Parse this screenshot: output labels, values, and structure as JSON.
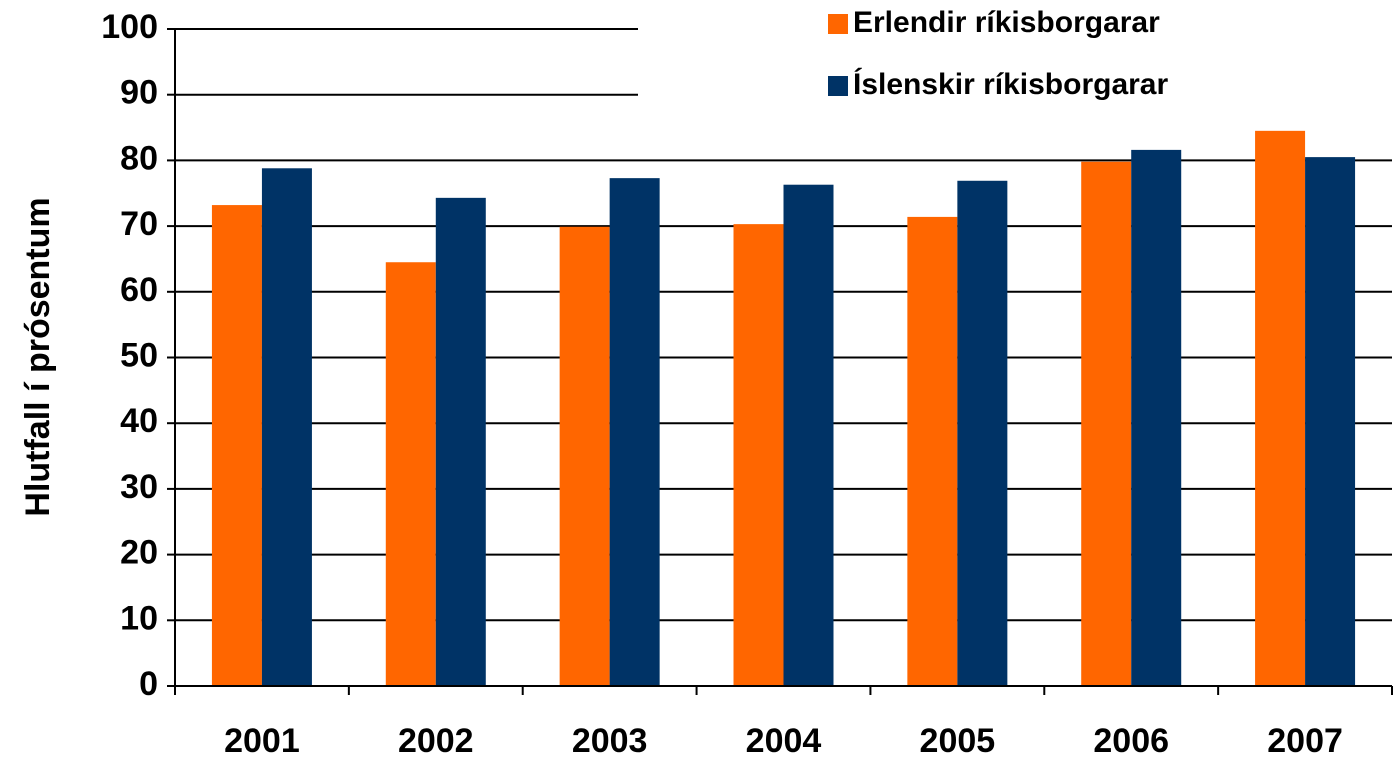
{
  "chart_data": {
    "type": "bar",
    "y_label": "Hlutfall í prósentum",
    "categories": [
      "2001",
      "2002",
      "2003",
      "2004",
      "2005",
      "2006",
      "2007"
    ],
    "series": [
      {
        "name": "Erlendir ríkisborgarar",
        "color": "#ff6600",
        "values": [
          73.2,
          64.5,
          69.9,
          70.3,
          71.4,
          79.8,
          84.5
        ]
      },
      {
        "name": "Íslenskir ríkisborgarar",
        "color": "#003366",
        "values": [
          78.8,
          74.3,
          77.3,
          76.3,
          76.9,
          81.6,
          80.5
        ]
      }
    ],
    "ylim": [
      0,
      100
    ],
    "yticks": [
      0,
      10,
      20,
      30,
      40,
      50,
      60,
      70,
      80,
      90,
      100
    ],
    "grid": true,
    "legend": "top-right"
  }
}
